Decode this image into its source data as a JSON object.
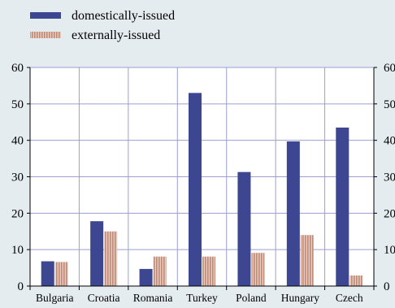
{
  "chart_data": {
    "type": "bar",
    "categories": [
      "Bulgaria",
      "Croatia",
      "Romania",
      "Turkey",
      "Poland",
      "Hungary",
      "Czech"
    ],
    "series": [
      {
        "name": "domestically-issued",
        "values": [
          6.8,
          17.8,
          4.7,
          53.0,
          31.3,
          39.7,
          43.5
        ],
        "color": "#3d4691"
      },
      {
        "name": "externally-issued",
        "values": [
          6.6,
          15.0,
          8.1,
          8.1,
          9.1,
          14.0,
          2.9
        ],
        "color": "#c08a78"
      }
    ],
    "title": "",
    "xlabel": "",
    "ylabel": "",
    "ylim": [
      0,
      60
    ],
    "yticks": [
      "0",
      "10",
      "20",
      "30",
      "40",
      "50",
      "60"
    ],
    "secondary_yticks": [
      "0",
      "10",
      "20",
      "30",
      "40",
      "50",
      "60"
    ],
    "grid": true,
    "legend_position": "top-left",
    "background": "#e5ecef",
    "plot_background": "#ffffff",
    "grid_color": "#9a9fcf"
  }
}
